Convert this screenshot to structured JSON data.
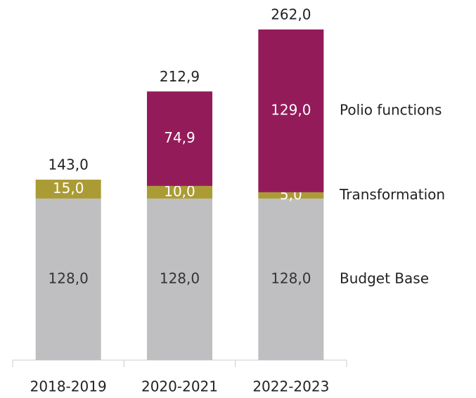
{
  "chart_data": {
    "type": "stacked_bar",
    "categories": [
      "2018-2019",
      "2020-2021",
      "2022-2023"
    ],
    "series": [
      {
        "name": "Budget Base",
        "color": "#bfbfc1",
        "label_color": "#333333",
        "values": [
          128,
          128,
          128
        ],
        "value_labels": [
          "128,0",
          "128,0",
          "128,0"
        ]
      },
      {
        "name": "Transformation",
        "color": "#ab9b35",
        "label_color": "#ffffff",
        "values": [
          15,
          10,
          5
        ],
        "value_labels": [
          "15,0",
          "10,0",
          "5,0"
        ]
      },
      {
        "name": "Polio functions",
        "color": "#941b5a",
        "label_color": "#ffffff",
        "values": [
          null,
          74.9,
          129
        ],
        "value_labels": [
          null,
          "74,9",
          "129,0"
        ]
      }
    ],
    "totals": [
      143,
      212.9,
      262
    ],
    "total_labels": [
      "143,0",
      "212,9",
      "262,0"
    ]
  }
}
